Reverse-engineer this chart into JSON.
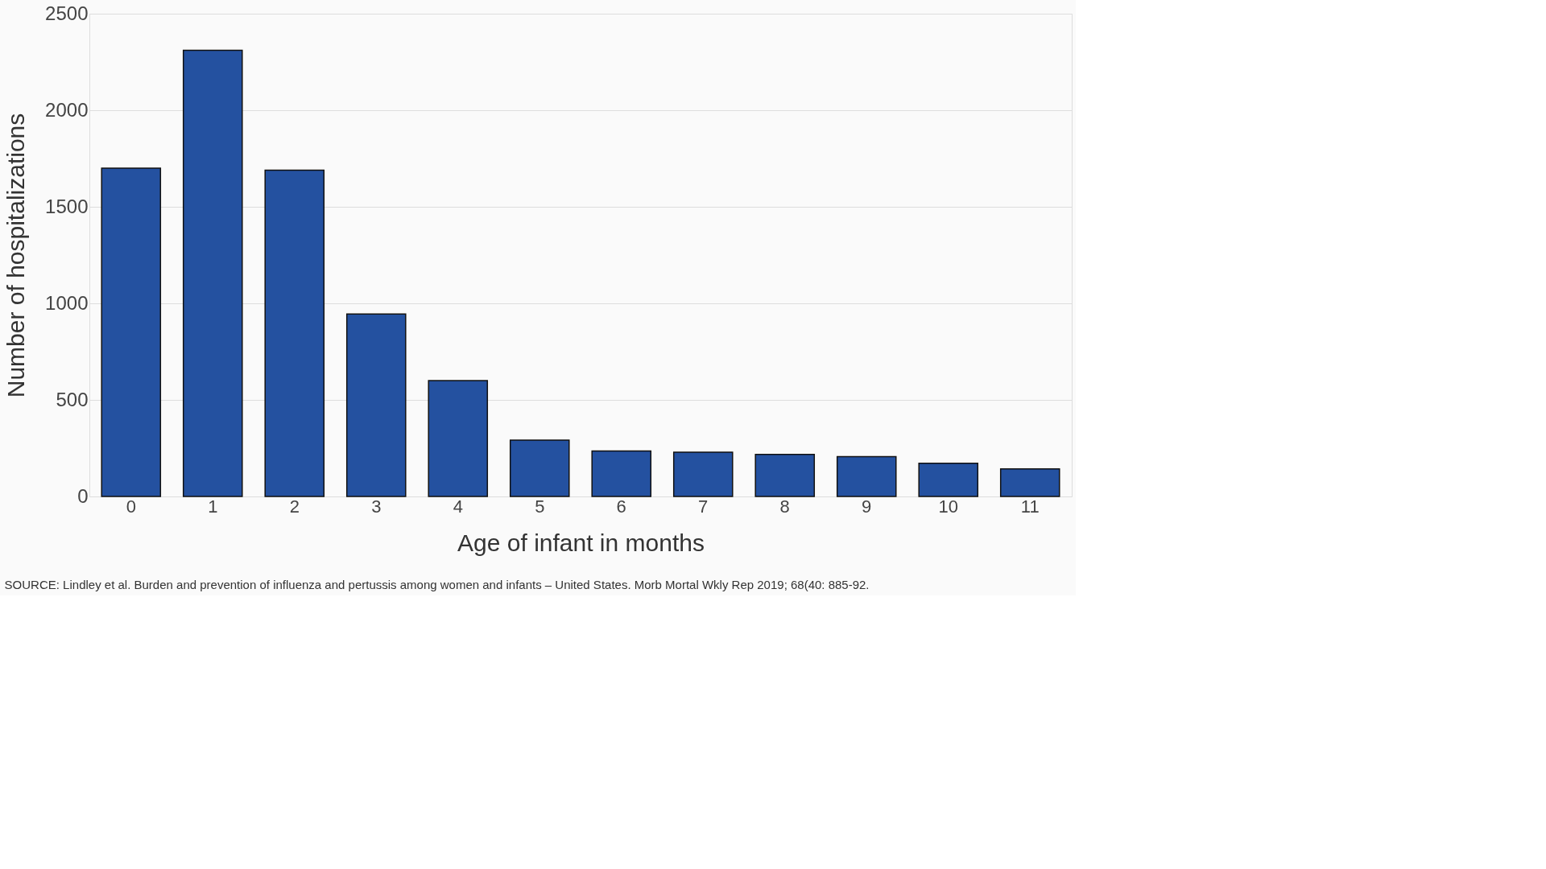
{
  "chart_data": {
    "type": "bar",
    "xlabel": "Age of infant in months",
    "ylabel": "Number of hospitalizations",
    "categories": [
      "0",
      "1",
      "2",
      "3",
      "4",
      "5",
      "6",
      "7",
      "8",
      "9",
      "10",
      "11"
    ],
    "values": [
      1700,
      2310,
      1690,
      945,
      600,
      292,
      235,
      229,
      218,
      206,
      172,
      143
    ],
    "color": "#2451a0",
    "ylim": [
      0,
      2500
    ],
    "yticks": [
      0,
      500,
      1000,
      1500,
      2000,
      2500
    ],
    "grid": "y",
    "annotations": [
      "SOURCE: Lindley et al. Burden and prevention of influenza and pertussis among women and infants – United States. Morb Mortal Wkly Rep 2019; 68(40: 885-92."
    ]
  }
}
